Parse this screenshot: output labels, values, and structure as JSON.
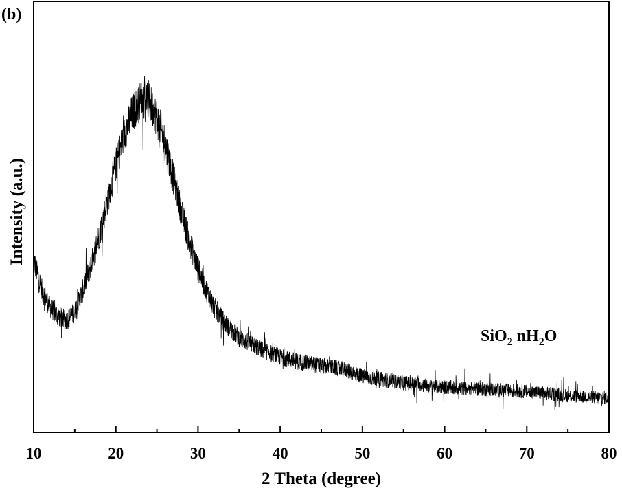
{
  "panel_label": "(b)",
  "chart_data": {
    "type": "line",
    "xlabel": "2 Theta (degree)",
    "ylabel": "Intensity (a.u.)",
    "xlim": [
      10,
      80
    ],
    "ylim": [
      0,
      100
    ],
    "x_ticks": [
      10,
      20,
      30,
      40,
      50,
      60,
      70,
      80
    ],
    "x_tick_labels": [
      "10",
      "20",
      "30",
      "40",
      "50",
      "60",
      "70",
      "80"
    ],
    "y_ticks_shown": false,
    "grid": false,
    "legend": "none",
    "annotation": {
      "base": "SiO",
      "sub1": "2",
      "mid": " nH",
      "sub2": "2",
      "end": "O"
    },
    "series": [
      {
        "color": "#000000",
        "x": [
          10,
          11,
          12,
          13,
          14,
          15,
          16,
          17,
          18,
          19,
          20,
          21,
          22,
          23,
          23.5,
          24,
          25,
          26,
          27,
          28,
          29,
          30,
          31,
          32,
          33,
          34,
          35,
          36,
          38,
          40,
          42,
          45,
          48,
          50,
          55,
          60,
          65,
          70,
          75,
          80
        ],
        "values": [
          40,
          33,
          29,
          27,
          26,
          28,
          33,
          39,
          46,
          54,
          62,
          69,
          74,
          77,
          77.5,
          77,
          73,
          67,
          59,
          51,
          44,
          38,
          33,
          29,
          26,
          24,
          22,
          21,
          19,
          17.5,
          16.5,
          15.5,
          14.5,
          13,
          11.5,
          10.5,
          10,
          9.5,
          8.5,
          8
        ]
      }
    ]
  }
}
